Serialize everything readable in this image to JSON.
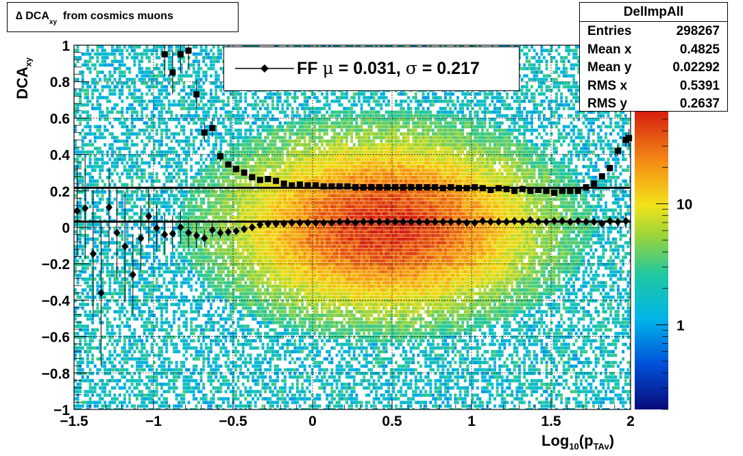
{
  "title": {
    "prefix": "∆ DCA",
    "sub": "xy",
    "suffix": "from cosmics muons"
  },
  "stats": {
    "name": "DelImpAll",
    "rows": [
      {
        "label": "Entries",
        "value": "298267"
      },
      {
        "label": "Mean x",
        "value": "0.4825"
      },
      {
        "label": "Mean y",
        "value": "0.02292"
      },
      {
        "label": "RMS x",
        "value": "0.5391"
      },
      {
        "label": "RMS y",
        "value": "0.2637"
      }
    ]
  },
  "legend": {
    "text_pre": "FF ",
    "mu": "μ",
    "text_mid": " =  0.031, ",
    "sigma": "σ",
    "text_post": " =   0.217"
  },
  "axes": {
    "ylabel_main": "DCA",
    "ylabel_sub": "xy",
    "xlabel_main": "Log",
    "xlabel_sub1": "10",
    "xlabel_mid": "(p",
    "xlabel_sub2": "TAv",
    "xlabel_end": ")"
  },
  "chart_data": {
    "type": "scatter",
    "x_range": [
      -1.5,
      2
    ],
    "y_range": [
      -1,
      1
    ],
    "x_ticks": [
      "−1.5",
      "−1",
      "−0.5",
      "0",
      "0.5",
      "1",
      "1.5",
      "2"
    ],
    "x_tick_values": [
      -1.5,
      -1,
      -0.5,
      0,
      0.5,
      1,
      1.5,
      2
    ],
    "y_ticks": [
      "−1",
      "−0.8",
      "−0.6",
      "−0.4",
      "−0.2",
      "0",
      "0.2",
      "0.4",
      "0.6",
      "0.8",
      "1"
    ],
    "y_tick_values": [
      -1,
      -0.8,
      -0.6,
      -0.4,
      -0.2,
      0,
      0.2,
      0.4,
      0.6,
      0.8,
      1
    ],
    "z_ticks": [
      "1",
      "10"
    ],
    "z_scale": "log",
    "heatmap": {
      "center_x": 0.45,
      "center_y": 0.02,
      "sigma_x": 0.55,
      "sigma_y": 0.27,
      "x_extent": [
        -1.5,
        2
      ]
    },
    "fit_lines": [
      {
        "name": "mean",
        "y": 0.031
      },
      {
        "name": "sigma",
        "y": 0.217
      }
    ],
    "series": [
      {
        "marker": "diamond",
        "points": [
          [
            -1.48,
            0.09,
            0.25
          ],
          [
            -1.43,
            0.105,
            0.28
          ],
          [
            -1.38,
            -0.145,
            0.35
          ],
          [
            -1.33,
            -0.36,
            0.4
          ],
          [
            -1.28,
            0.11,
            0.22
          ],
          [
            -1.23,
            -0.03,
            0.25
          ],
          [
            -1.18,
            -0.105,
            0.3
          ],
          [
            -1.13,
            -0.26,
            0.22
          ],
          [
            -1.08,
            -0.06,
            0.18
          ],
          [
            -1.03,
            0.06,
            0.15
          ],
          [
            -0.98,
            -0.005,
            0.13
          ],
          [
            -0.93,
            -0.04,
            0.11
          ],
          [
            -0.88,
            -0.035,
            0.1
          ],
          [
            -0.83,
            0.0,
            0.09
          ],
          [
            -0.78,
            -0.03,
            0.08
          ],
          [
            -0.73,
            -0.045,
            0.07
          ],
          [
            -0.68,
            -0.06,
            0.05
          ],
          [
            -0.63,
            -0.015,
            0.04
          ],
          [
            -0.58,
            -0.03,
            0.03
          ],
          [
            -0.53,
            -0.025,
            0.025
          ],
          [
            -0.48,
            -0.02,
            0.02
          ],
          [
            -0.43,
            -0.01,
            0.015
          ],
          [
            -0.38,
            0.0,
            0.012
          ],
          [
            -0.33,
            0.015,
            0.01
          ],
          [
            -0.28,
            0.02,
            0.01
          ],
          [
            -0.23,
            0.02,
            0.01
          ],
          [
            -0.18,
            0.02,
            0.01
          ],
          [
            -0.13,
            0.025,
            0.01
          ],
          [
            -0.08,
            0.025,
            0.01
          ],
          [
            -0.03,
            0.025,
            0.01
          ],
          [
            0.02,
            0.025,
            0.01
          ],
          [
            0.07,
            0.025,
            0.01
          ],
          [
            0.12,
            0.025,
            0.01
          ],
          [
            0.17,
            0.03,
            0.01
          ],
          [
            0.22,
            0.03,
            0.01
          ],
          [
            0.27,
            0.025,
            0.01
          ],
          [
            0.32,
            0.03,
            0.01
          ],
          [
            0.37,
            0.03,
            0.01
          ],
          [
            0.42,
            0.03,
            0.01
          ],
          [
            0.47,
            0.03,
            0.01
          ],
          [
            0.52,
            0.03,
            0.01
          ],
          [
            0.57,
            0.03,
            0.01
          ],
          [
            0.62,
            0.03,
            0.01
          ],
          [
            0.67,
            0.03,
            0.01
          ],
          [
            0.72,
            0.03,
            0.01
          ],
          [
            0.77,
            0.03,
            0.01
          ],
          [
            0.82,
            0.03,
            0.01
          ],
          [
            0.87,
            0.03,
            0.01
          ],
          [
            0.92,
            0.03,
            0.01
          ],
          [
            0.97,
            0.025,
            0.01
          ],
          [
            1.02,
            0.025,
            0.01
          ],
          [
            1.07,
            0.035,
            0.01
          ],
          [
            1.12,
            0.03,
            0.01
          ],
          [
            1.17,
            0.03,
            0.01
          ],
          [
            1.22,
            0.03,
            0.01
          ],
          [
            1.27,
            0.035,
            0.01
          ],
          [
            1.32,
            0.03,
            0.01
          ],
          [
            1.37,
            0.04,
            0.01
          ],
          [
            1.42,
            0.03,
            0.01
          ],
          [
            1.47,
            0.03,
            0.01
          ],
          [
            1.52,
            0.035,
            0.01
          ],
          [
            1.57,
            0.035,
            0.01
          ],
          [
            1.62,
            0.03,
            0.01
          ],
          [
            1.67,
            0.035,
            0.01
          ],
          [
            1.72,
            0.03,
            0.01
          ],
          [
            1.77,
            0.03,
            0.015
          ],
          [
            1.82,
            0.02,
            0.02
          ],
          [
            1.87,
            0.035,
            0.025
          ],
          [
            1.92,
            0.03,
            0.03
          ],
          [
            1.97,
            0.035,
            0.04
          ]
        ]
      },
      {
        "marker": "square",
        "points": [
          [
            -0.93,
            0.95,
            0.12
          ],
          [
            -0.88,
            0.85,
            0.12
          ],
          [
            -0.83,
            0.95,
            0.1
          ],
          [
            -0.78,
            0.97,
            0.1
          ],
          [
            -0.73,
            0.73,
            0.08
          ],
          [
            -0.68,
            0.52,
            0.05
          ],
          [
            -0.63,
            0.545,
            0.05
          ],
          [
            -0.58,
            0.39,
            0.03
          ],
          [
            -0.53,
            0.345,
            0.02
          ],
          [
            -0.48,
            0.32,
            0.02
          ],
          [
            -0.43,
            0.3,
            0.015
          ],
          [
            -0.38,
            0.275,
            0.012
          ],
          [
            -0.33,
            0.26,
            0.01
          ],
          [
            -0.28,
            0.265,
            0.01
          ],
          [
            -0.23,
            0.255,
            0.01
          ],
          [
            -0.18,
            0.24,
            0.01
          ],
          [
            -0.13,
            0.23,
            0.01
          ],
          [
            -0.08,
            0.235,
            0.01
          ],
          [
            -0.03,
            0.23,
            0.01
          ],
          [
            0.02,
            0.23,
            0.01
          ],
          [
            0.07,
            0.225,
            0.01
          ],
          [
            0.12,
            0.225,
            0.01
          ],
          [
            0.17,
            0.225,
            0.01
          ],
          [
            0.22,
            0.225,
            0.01
          ],
          [
            0.27,
            0.22,
            0.01
          ],
          [
            0.32,
            0.22,
            0.01
          ],
          [
            0.37,
            0.22,
            0.01
          ],
          [
            0.42,
            0.22,
            0.01
          ],
          [
            0.47,
            0.22,
            0.01
          ],
          [
            0.52,
            0.22,
            0.01
          ],
          [
            0.57,
            0.22,
            0.01
          ],
          [
            0.62,
            0.22,
            0.01
          ],
          [
            0.67,
            0.22,
            0.01
          ],
          [
            0.72,
            0.22,
            0.01
          ],
          [
            0.77,
            0.22,
            0.01
          ],
          [
            0.82,
            0.215,
            0.01
          ],
          [
            0.87,
            0.22,
            0.01
          ],
          [
            0.92,
            0.215,
            0.01
          ],
          [
            0.97,
            0.215,
            0.01
          ],
          [
            1.02,
            0.22,
            0.01
          ],
          [
            1.07,
            0.215,
            0.01
          ],
          [
            1.12,
            0.205,
            0.01
          ],
          [
            1.17,
            0.215,
            0.01
          ],
          [
            1.22,
            0.21,
            0.01
          ],
          [
            1.27,
            0.2,
            0.01
          ],
          [
            1.32,
            0.21,
            0.01
          ],
          [
            1.37,
            0.2,
            0.01
          ],
          [
            1.42,
            0.205,
            0.01
          ],
          [
            1.47,
            0.2,
            0.01
          ],
          [
            1.52,
            0.19,
            0.01
          ],
          [
            1.57,
            0.2,
            0.01
          ],
          [
            1.62,
            0.2,
            0.01
          ],
          [
            1.67,
            0.2,
            0.01
          ],
          [
            1.72,
            0.22,
            0.01
          ],
          [
            1.77,
            0.24,
            0.01
          ],
          [
            1.82,
            0.28,
            0.015
          ],
          [
            1.87,
            0.325,
            0.02
          ],
          [
            1.92,
            0.42,
            0.03
          ],
          [
            1.97,
            0.48,
            0.04
          ],
          [
            1.99,
            0.49,
            0.05
          ]
        ]
      }
    ]
  }
}
